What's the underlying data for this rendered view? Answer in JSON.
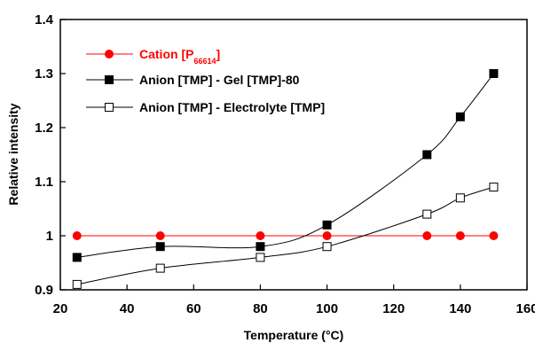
{
  "chart_data": {
    "type": "line",
    "xlabel": "Temperature (°C)",
    "ylabel": "Relative intensity",
    "xlim": [
      20,
      160
    ],
    "ylim": [
      0.9,
      1.4
    ],
    "x_ticks": [
      "20",
      "40",
      "60",
      "80",
      "100",
      "120",
      "140",
      "160"
    ],
    "y_ticks": [
      "0.9",
      "1",
      "1.1",
      "1.2",
      "1.3",
      "1.4"
    ],
    "grid": false,
    "legend_position": "top-left",
    "series": [
      {
        "name_main": "Cation [P",
        "name_sub": "66614",
        "name_end": "]",
        "color": "#ff0000",
        "marker": "filled-circle",
        "line": "straight",
        "points": [
          [
            25,
            1.0
          ],
          [
            50,
            1.0
          ],
          [
            80,
            1.0
          ],
          [
            100,
            1.0
          ],
          [
            130,
            1.0
          ],
          [
            140,
            1.0
          ],
          [
            150,
            1.0
          ]
        ]
      },
      {
        "name_main": "Anion [TMP] - Gel [TMP]-80",
        "color": "#000000",
        "marker": "filled-square",
        "line": "smooth",
        "points": [
          [
            25,
            0.96
          ],
          [
            50,
            0.98
          ],
          [
            80,
            0.98
          ],
          [
            100,
            1.02
          ],
          [
            130,
            1.15
          ],
          [
            140,
            1.22
          ],
          [
            150,
            1.3
          ]
        ]
      },
      {
        "name_main": "Anion [TMP] - Electrolyte [TMP]",
        "color": "#000000",
        "marker": "open-square",
        "line": "smooth",
        "points": [
          [
            25,
            0.91
          ],
          [
            50,
            0.94
          ],
          [
            80,
            0.96
          ],
          [
            100,
            0.98
          ],
          [
            130,
            1.04
          ],
          [
            140,
            1.07
          ],
          [
            150,
            1.09
          ]
        ]
      }
    ]
  }
}
